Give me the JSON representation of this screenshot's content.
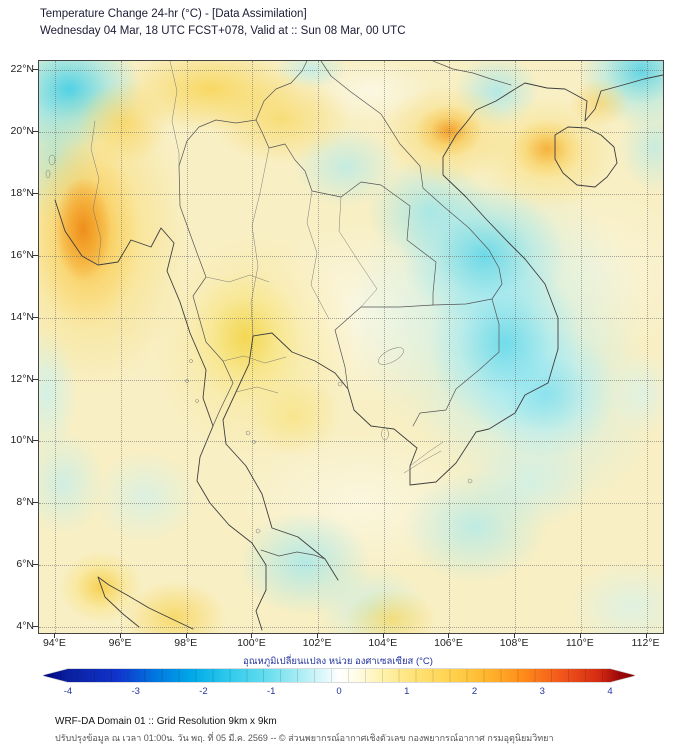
{
  "header": {
    "title_line1": "Temperature Change 24-hr (°C) - [Data Assimilation]",
    "title_line2": "Wednesday 04 Mar, 18 UTC FCST+078, Valid at :: Sun 08 Mar, 00 UTC"
  },
  "map": {
    "lat_ticks": [
      "22°N",
      "20°N",
      "18°N",
      "16°N",
      "14°N",
      "12°N",
      "10°N",
      "8°N",
      "6°N",
      "4°N"
    ],
    "lon_ticks": [
      "94°E",
      "96°E",
      "98°E",
      "100°E",
      "102°E",
      "104°E",
      "106°E",
      "108°E",
      "110°E",
      "112°E"
    ]
  },
  "colorbar": {
    "label": "อุณหภูมิเปลี่ยนแปลง หน่วย องศาเซลเซียส (°C)",
    "ticks": [
      "-4",
      "-3",
      "-2",
      "-1",
      "0",
      "1",
      "2",
      "3",
      "4"
    ]
  },
  "footer": {
    "line1": "WRF-DA Domain 01 :: Grid Resolution 9km x 9km",
    "line2": "ปรับปรุงข้อมูล ณ เวลา 01:00น. วัน พฤ. ที่ 05 มี.ค. 2569 -- © ส่วนพยากรณ์อากาศเชิงตัวเลข กองพยากรณ์อากาศ กรมอุตุนิยมวิทยา"
  },
  "chart_data": {
    "type": "heatmap",
    "title": "Temperature Change 24-hr (°C) - [Data Assimilation]",
    "subtitle": "Wednesday 04 Mar, 18 UTC FCST+078, Valid at :: Sun 08 Mar, 00 UTC",
    "x_axis": {
      "label": "Longitude (°E)",
      "range": [
        93.5,
        112.5
      ],
      "ticks": [
        94,
        96,
        98,
        100,
        102,
        104,
        106,
        108,
        110,
        112
      ]
    },
    "y_axis": {
      "label": "Latitude (°N)",
      "range": [
        3.8,
        22.3
      ],
      "ticks": [
        4,
        6,
        8,
        10,
        12,
        14,
        16,
        18,
        20,
        22
      ]
    },
    "grid": true,
    "colorbar": {
      "label": "อุณหภูมิเปลี่ยนแปลง หน่วย องศาเซลเซียส (°C)",
      "range": [
        -4,
        4
      ],
      "ticks": [
        -4,
        -3,
        -2,
        -1,
        0,
        1,
        2,
        3,
        4
      ],
      "colors": [
        "#000080",
        "#1133cc",
        "#00a8e8",
        "#62dcee",
        "#ffffff",
        "#ffe379",
        "#ffb62e",
        "#f2571c",
        "#8b0000"
      ]
    },
    "background_value": 0.4,
    "anomalies": [
      {
        "lon": 95.0,
        "lat": 16.3,
        "value": 2.6,
        "note": "strong warm anomaly, western Myanmar coast"
      },
      {
        "lon": 94.3,
        "lat": 21.4,
        "value": -1.3,
        "note": "cool patch, NW corner"
      },
      {
        "lon": 96.5,
        "lat": 21.3,
        "value": 1.0,
        "note": "warm band along northern edge"
      },
      {
        "lon": 106.0,
        "lat": 20.1,
        "value": 1.8,
        "note": "warm spot near northern Vietnam"
      },
      {
        "lon": 110.1,
        "lat": 19.4,
        "value": 1.6,
        "note": "warm anomaly over Hainan"
      },
      {
        "lon": 112.0,
        "lat": 21.9,
        "value": -1.3,
        "note": "cool patch, NE corner"
      },
      {
        "lon": 107.0,
        "lat": 21.2,
        "value": -0.8,
        "note": "cool patch, Gulf of Tonkin"
      },
      {
        "lon": 105.0,
        "lat": 16.0,
        "value": -1.6,
        "note": "broad cooling, central Laos / Vietnam"
      },
      {
        "lon": 105.5,
        "lat": 11.5,
        "value": -1.4,
        "note": "cooling, Cambodia / southern Vietnam"
      },
      {
        "lon": 102.8,
        "lat": 18.8,
        "value": -0.9,
        "note": "cool patch, northern Laos"
      },
      {
        "lon": 100.0,
        "lat": 13.5,
        "value": 1.2,
        "note": "warm band, central Thailand"
      },
      {
        "lon": 95.5,
        "lat": 5.3,
        "value": 1.5,
        "note": "warm spots, NW Sumatra"
      },
      {
        "lon": 101.5,
        "lat": 6.1,
        "value": -0.9,
        "note": "cool patch, southern Gulf of Thailand"
      },
      {
        "lon": 106.7,
        "lat": 7.2,
        "value": -0.9,
        "note": "cool patch, lower South China Sea"
      },
      {
        "lon": 104.2,
        "lat": 4.3,
        "value": 0.9,
        "note": "warm spot, bottom centre"
      }
    ]
  }
}
